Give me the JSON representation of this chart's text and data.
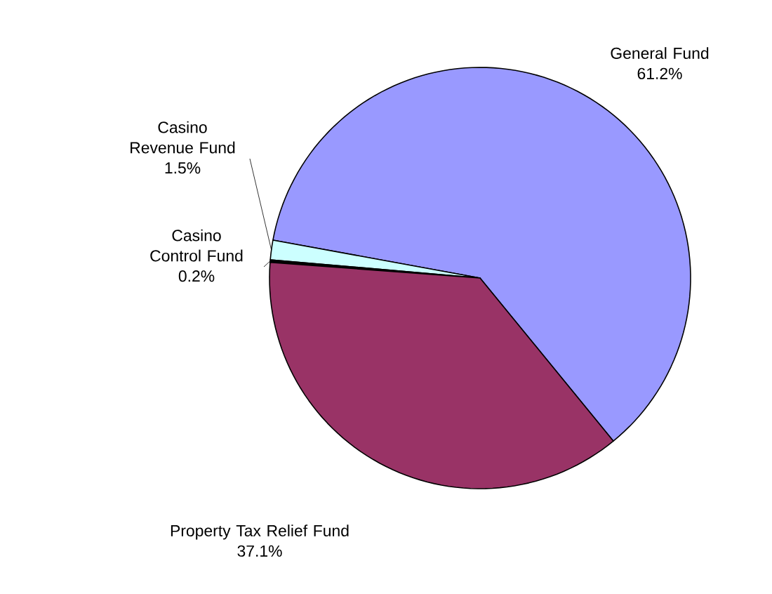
{
  "chart_data": {
    "type": "pie",
    "categories": [
      "General Fund",
      "Casino Revenue Fund",
      "Casino Control Fund",
      "Property Tax Relief Fund"
    ],
    "values": [
      61.2,
      1.5,
      0.2,
      37.1
    ],
    "colors": [
      "#9999ff",
      "#ccffff",
      "#000000",
      "#993366"
    ],
    "value_labels": [
      "61.2%",
      "1.5%",
      "0.2%",
      "37.1%"
    ]
  }
}
